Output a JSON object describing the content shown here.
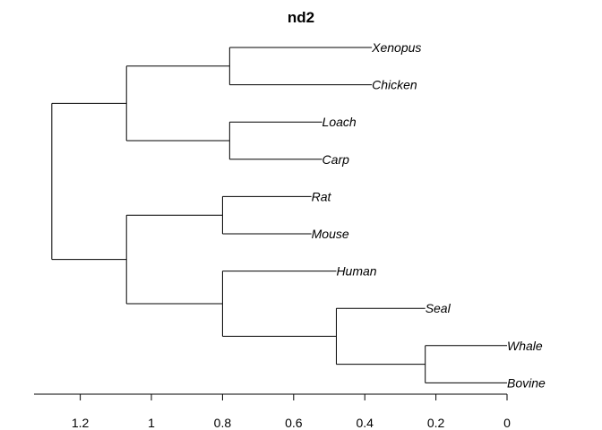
{
  "chart_data": {
    "type": "dendrogram",
    "title": "nd2",
    "orientation": "horizontal",
    "x_axis": {
      "reversed": true,
      "range": [
        1.33,
        0
      ],
      "ticks": [
        1.2,
        1,
        0.8,
        0.6,
        0.4,
        0.2,
        0
      ],
      "tick_labels": [
        "1.2",
        "1",
        "0.8",
        "0.6",
        "0.4",
        "0.2",
        "0"
      ]
    },
    "leaves": [
      {
        "name": "Xenopus",
        "height": 0.38
      },
      {
        "name": "Chicken",
        "height": 0.38
      },
      {
        "name": "Loach",
        "height": 0.52
      },
      {
        "name": "Carp",
        "height": 0.52
      },
      {
        "name": "Rat",
        "height": 0.55
      },
      {
        "name": "Mouse",
        "height": 0.55
      },
      {
        "name": "Human",
        "height": 0.48
      },
      {
        "name": "Seal",
        "height": 0.23
      },
      {
        "name": "Whale",
        "height": 0.0
      },
      {
        "name": "Bovine",
        "height": 0.0
      }
    ],
    "merges": [
      {
        "children": [
          "Xenopus",
          "Chicken"
        ],
        "height": 0.78
      },
      {
        "children": [
          "Loach",
          "Carp"
        ],
        "height": 0.78
      },
      {
        "children": [
          "Rat",
          "Mouse"
        ],
        "height": 0.8
      },
      {
        "children": [
          "Whale",
          "Bovine"
        ],
        "height": 0.23
      },
      {
        "children": [
          "Seal",
          "Whale+Bovine"
        ],
        "height": 0.48
      },
      {
        "children": [
          "Human",
          "Seal+Whale+Bovine"
        ],
        "height": 0.8
      },
      {
        "children": [
          "Xenopus+Chicken",
          "Loach+Carp"
        ],
        "height": 1.07
      },
      {
        "children": [
          "Rat+Mouse",
          "Human+Seal+Whale+Bovine"
        ],
        "height": 1.07
      },
      {
        "children": [
          "Fish+Amphibian+Bird",
          "Mammals"
        ],
        "height": 1.28
      }
    ]
  }
}
